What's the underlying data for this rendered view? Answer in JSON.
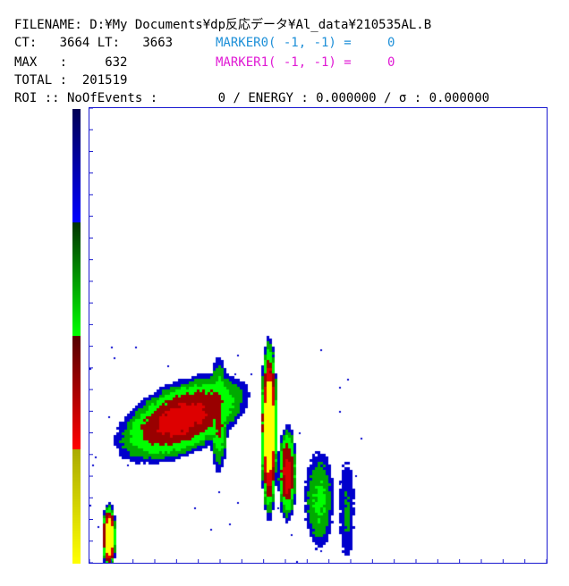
{
  "header": {
    "filename_label": "FILENAME:",
    "filename_value": "D:¥My Documents¥dp反応データ¥Al_data¥210535AL.B",
    "ct_label": "CT:",
    "ct_value": "3664",
    "lt_label": "LT:",
    "lt_value": "3663",
    "max_label": "MAX",
    "max_sep": ":",
    "max_value": "632",
    "total_label": "TOTAL :",
    "total_value": "201519",
    "roi_label": "ROI :: NoOfEvents :",
    "roi_events": "0",
    "roi_energy": "/ ENERGY : 0.000000 /",
    "roi_sigma_symbol": "σ",
    "roi_sigma_value": ": 0.000000"
  },
  "markers": [
    {
      "label": "MARKER0( -1, -1) =",
      "value": "0",
      "color": "#1e90d8"
    },
    {
      "label": "MARKER1( -1, -1) =",
      "value": "0",
      "color": "#e01ad4"
    }
  ],
  "colorbar": {
    "stops": [
      {
        "from": "#000055",
        "to": "#0000ff"
      },
      {
        "from": "#003300",
        "to": "#00ff00"
      },
      {
        "from": "#550000",
        "to": "#ff0000"
      },
      {
        "from": "#aaaa00",
        "to": "#ffff00"
      }
    ]
  },
  "chart_data": {
    "type": "heatmap",
    "title": "",
    "xlabel": "",
    "ylabel": "",
    "x_ticks": 21,
    "y_ticks": 21,
    "grid": false,
    "palette": [
      "#0000cc",
      "#00aa00",
      "#00ff00",
      "#990000",
      "#dd0000",
      "#ffff00"
    ],
    "regions": [
      {
        "name": "low-spot",
        "xc": 0.04,
        "yc": 0.06,
        "rx": 0.015,
        "ry": 0.07,
        "peak": 6
      },
      {
        "name": "main-band",
        "xc": 0.2,
        "yc": 0.32,
        "rx": 0.15,
        "ry": 0.075,
        "tilt": -0.45,
        "peak": 4
      },
      {
        "name": "vertical-peak",
        "xc": 0.39,
        "yc": 0.3,
        "rx": 0.018,
        "ry": 0.19,
        "peak": 6
      },
      {
        "name": "side-peak-1",
        "xc": 0.28,
        "yc": 0.33,
        "rx": 0.02,
        "ry": 0.12,
        "peak": 3
      },
      {
        "name": "side-peak-2",
        "xc": 0.43,
        "yc": 0.2,
        "rx": 0.02,
        "ry": 0.1,
        "peak": 4
      },
      {
        "name": "tail-1",
        "xc": 0.5,
        "yc": 0.14,
        "rx": 0.03,
        "ry": 0.1,
        "peak": 2
      },
      {
        "name": "tail-2",
        "xc": 0.56,
        "yc": 0.12,
        "rx": 0.015,
        "ry": 0.1,
        "peak": 1
      }
    ]
  }
}
